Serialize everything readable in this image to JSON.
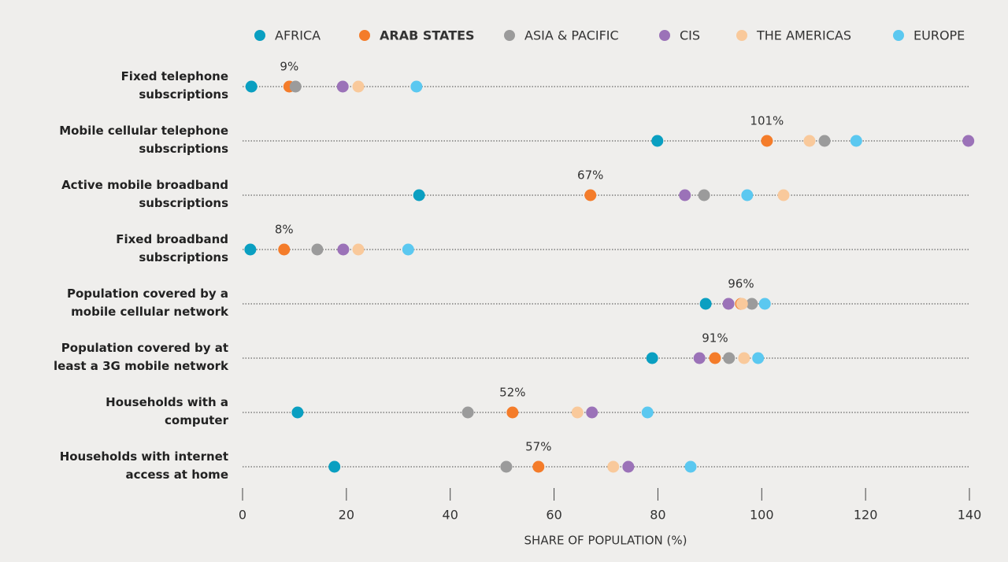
{
  "chart_data": {
    "type": "dot",
    "categories": [
      "Fixed telephone subscriptions",
      "Mobile cellular telephone subscriptions",
      "Active mobile broadband subscriptions",
      "Fixed broadband subscriptions",
      "Population covered by a mobile cellular network",
      "Population covered by at least a 3G mobile network",
      "Households with a computer",
      "Households with internet access at home"
    ],
    "series": [
      {
        "name": "AFRICA",
        "color": "#0a9fc1",
        "values": [
          1.7,
          79.9,
          34,
          1.5,
          89.2,
          78.9,
          10.6,
          17.7
        ]
      },
      {
        "name": "ARAB STATES",
        "color": "#f47c2a",
        "values": [
          9,
          101,
          67,
          8,
          96,
          91,
          52,
          57
        ],
        "value_labels": [
          "9%",
          "101%",
          "67%",
          "8%",
          "96%",
          "91%",
          "52%",
          "57%"
        ]
      },
      {
        "name": "ASIA & PACIFIC",
        "color": "#9b9b9b",
        "values": [
          10.2,
          112.1,
          88.9,
          14.4,
          98.1,
          93.7,
          43.4,
          50.8
        ]
      },
      {
        "name": "CIS",
        "color": "#9b72b8",
        "values": [
          19.3,
          139.8,
          85.2,
          19.4,
          93.6,
          88,
          67.3,
          74.3
        ]
      },
      {
        "name": "THE AMERICAS",
        "color": "#f9c99b",
        "values": [
          22.3,
          109.2,
          104.2,
          22.3,
          96.2,
          96.6,
          64.5,
          71.4
        ]
      },
      {
        "name": "EUROPE",
        "color": "#5bc8f0",
        "values": [
          33.5,
          118.2,
          97.2,
          31.9,
          100.6,
          99.3,
          78,
          86.3
        ]
      }
    ],
    "xlabel": "SHARE OF POPULATION (%)",
    "xlim": [
      0,
      140
    ],
    "xticks": [
      0,
      20,
      40,
      60,
      80,
      100,
      120,
      140
    ]
  }
}
